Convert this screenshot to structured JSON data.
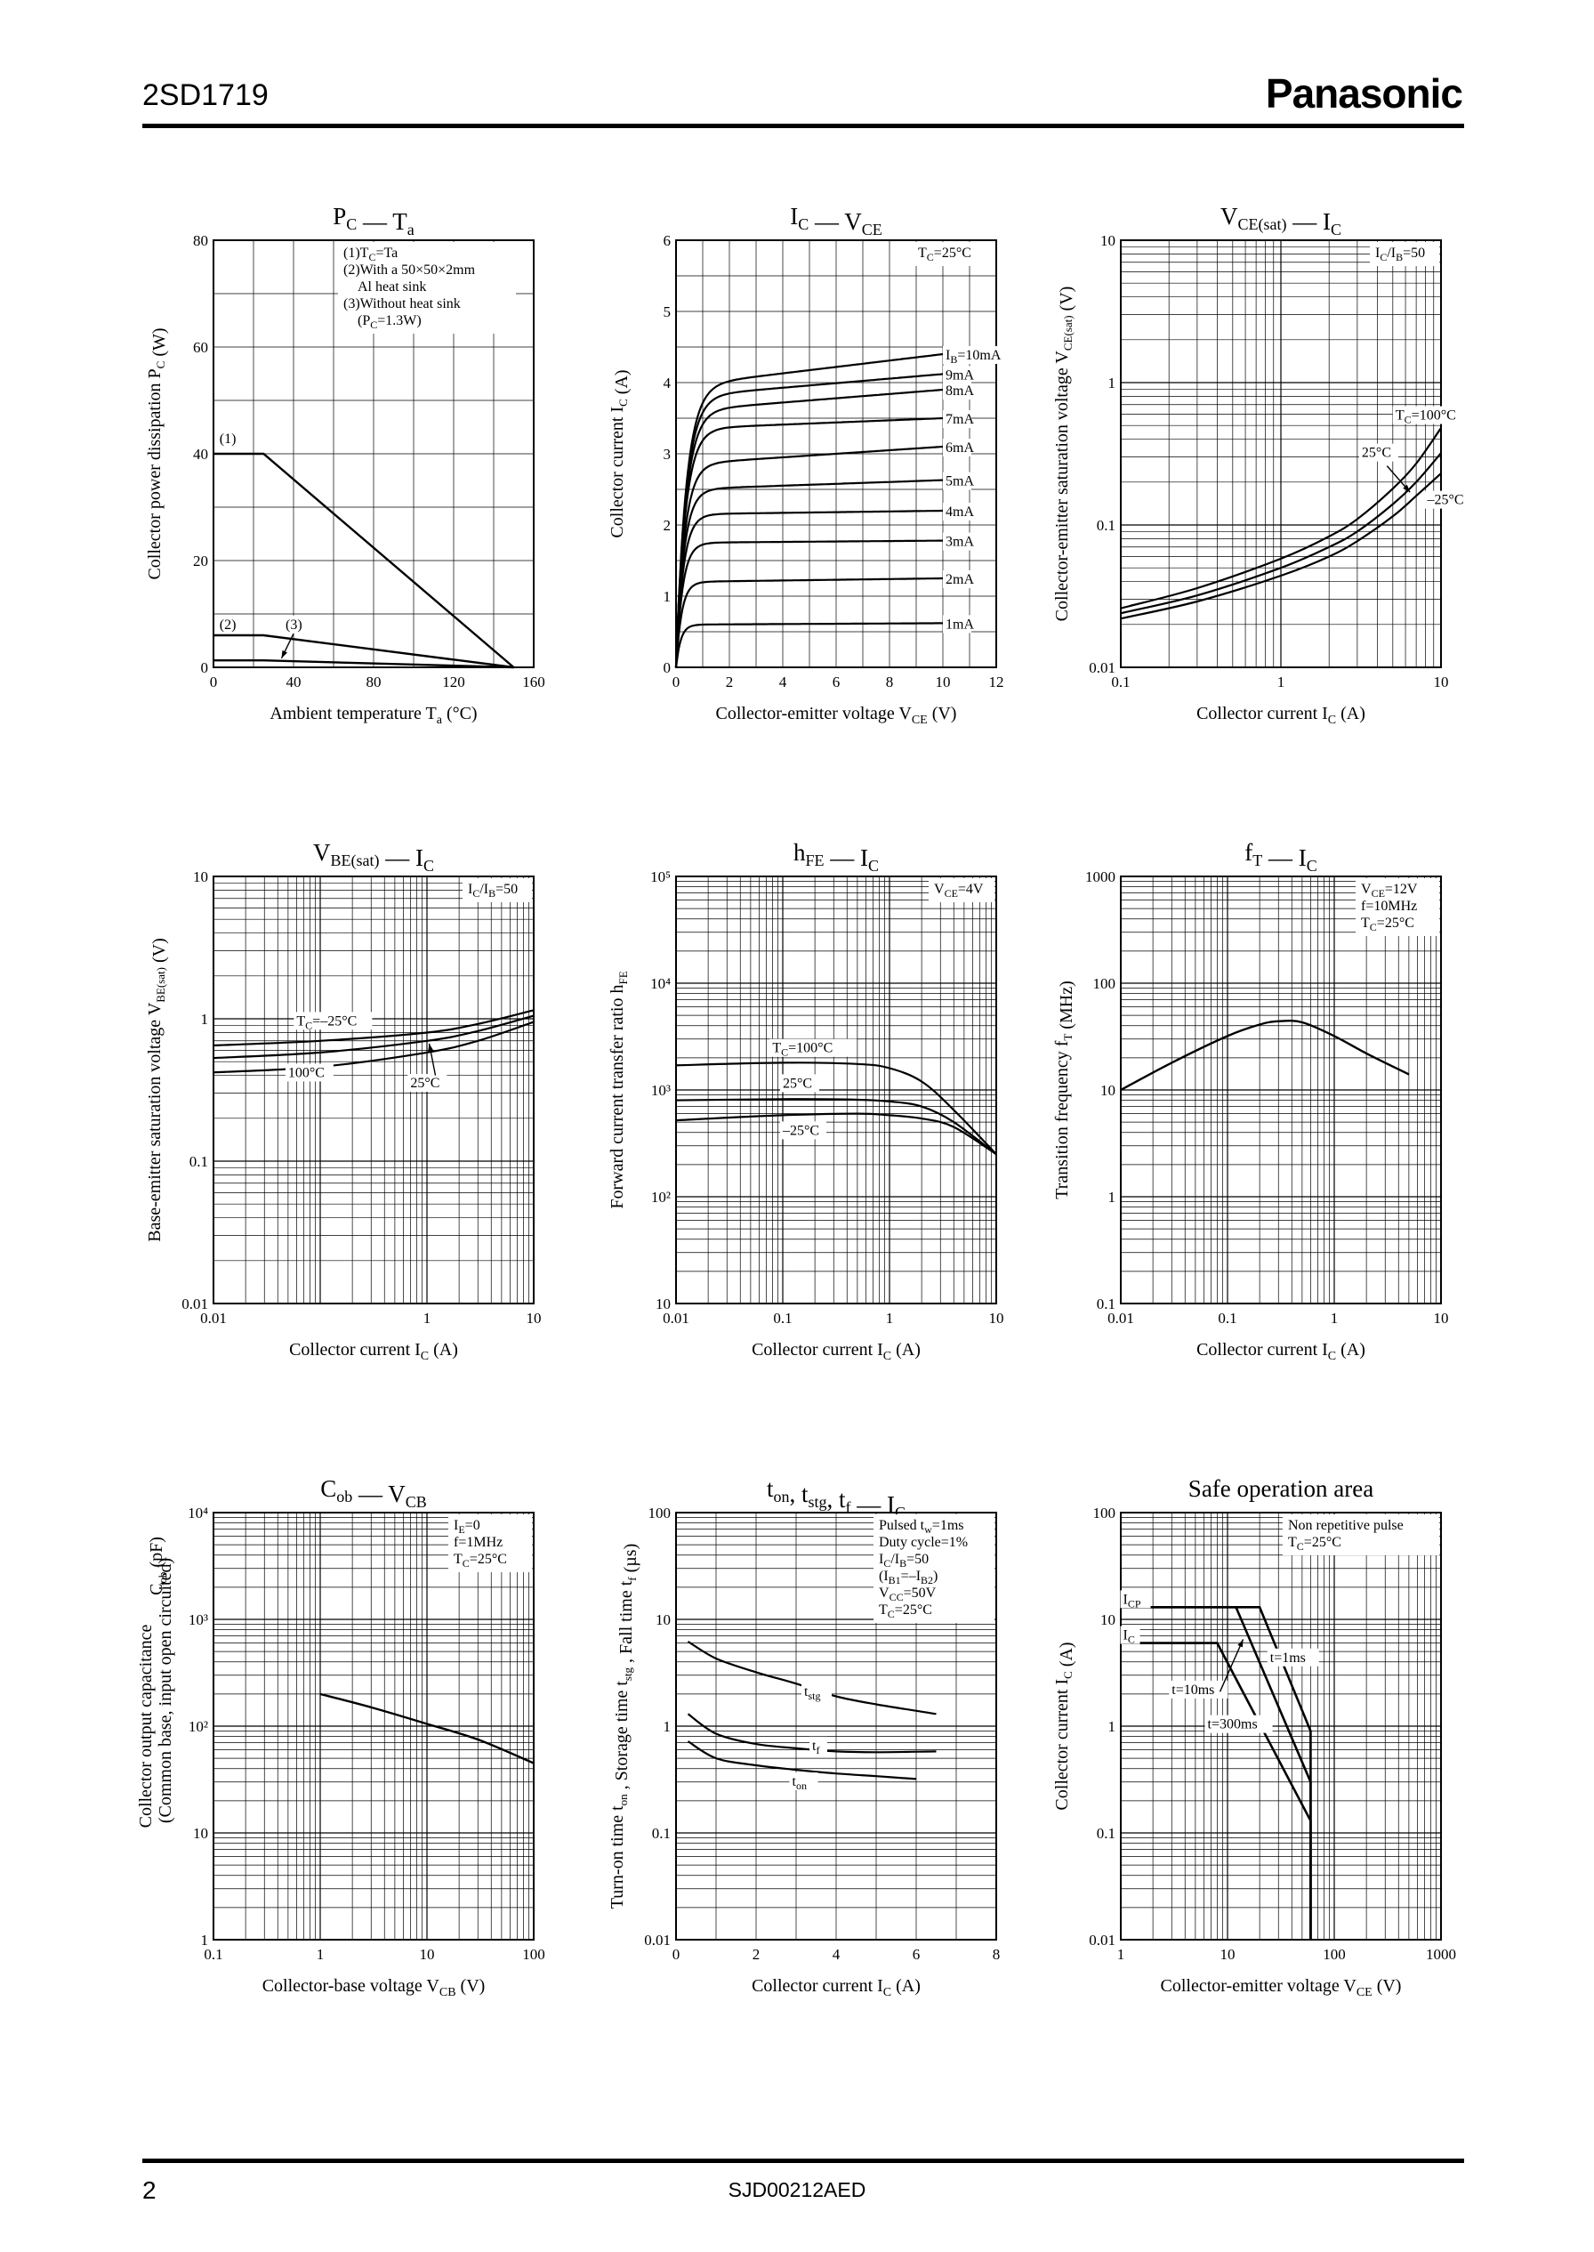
{
  "header": {
    "part_number": "2SD1719",
    "brand": "Panasonic"
  },
  "footer": {
    "page_number": "2",
    "doc_code": "SJD00212AED"
  },
  "chart_data": [
    {
      "id": "pc-ta",
      "type": "line",
      "title_main": "P",
      "title_main_sub": "C",
      "title_sep": " — ",
      "title_var": "T",
      "title_var_sub": "a",
      "ylabel": "Collector power dissipation  P",
      "ylabel_sub": "C",
      "ylabel_unit": "  (W)",
      "xlabel": "Ambient temperature  T",
      "xlabel_sub": "a",
      "xlabel_unit": "  (°C)",
      "xscale": "linear",
      "yscale": "linear",
      "xlim": [
        0,
        160
      ],
      "ylim": [
        0,
        80
      ],
      "xticks": [
        "0",
        "40",
        "80",
        "120",
        "160"
      ],
      "yticks": [
        "0",
        "20",
        "40",
        "60",
        "80"
      ],
      "legend": [
        "(1)T C=Ta",
        "(2)With a 50×50×2mm",
        "Al heat sink",
        "(3)Without heat sink",
        "(P C=1.3W)"
      ],
      "series": [
        {
          "name": "(1)",
          "x": [
            0,
            25,
            150
          ],
          "y": [
            40,
            40,
            0
          ]
        },
        {
          "name": "(2)",
          "x": [
            0,
            25,
            150
          ],
          "y": [
            6,
            6,
            0
          ]
        },
        {
          "name": "(3)",
          "x": [
            0,
            25,
            150
          ],
          "y": [
            1.3,
            1.3,
            0
          ]
        }
      ],
      "annotations": [
        "(1)",
        "(2)",
        "(3)"
      ]
    },
    {
      "id": "ic-vce",
      "type": "line",
      "title_main": "I",
      "title_main_sub": "C",
      "title_sep": " — ",
      "title_var": "V",
      "title_var_sub": "CE",
      "ylabel": "Collector current  I",
      "ylabel_sub": "C",
      "ylabel_unit": "  (A)",
      "xlabel": "Collector-emitter voltage  V",
      "xlabel_sub": "CE",
      "xlabel_unit": "  (V)",
      "xscale": "linear",
      "yscale": "linear",
      "xlim": [
        0,
        12
      ],
      "ylim": [
        0,
        6
      ],
      "xticks": [
        "0",
        "2",
        "4",
        "6",
        "8",
        "10",
        "12"
      ],
      "yticks": [
        "0",
        "1",
        "2",
        "3",
        "4",
        "5",
        "6"
      ],
      "legend": [
        "T C=25°C"
      ],
      "series": [
        {
          "name": "I B=10mA",
          "sat": 3.95,
          "end": 4.4
        },
        {
          "name": "9mA",
          "sat": 3.8,
          "end": 4.12
        },
        {
          "name": "8mA",
          "sat": 3.6,
          "end": 3.9
        },
        {
          "name": "7mA",
          "sat": 3.35,
          "end": 3.5
        },
        {
          "name": "6mA",
          "sat": 2.85,
          "end": 3.1
        },
        {
          "name": "5mA",
          "sat": 2.5,
          "end": 2.63
        },
        {
          "name": "4mA",
          "sat": 2.15,
          "end": 2.2
        },
        {
          "name": "3mA",
          "sat": 1.75,
          "end": 1.78
        },
        {
          "name": "2mA",
          "sat": 1.2,
          "end": 1.25
        },
        {
          "name": "1mA",
          "sat": 0.6,
          "end": 0.62
        }
      ]
    },
    {
      "id": "vcesat-ic",
      "type": "line",
      "title_main": "V",
      "title_main_sub": "CE(sat)",
      "title_sep": " — ",
      "title_var": "I",
      "title_var_sub": "C",
      "ylabel": "Collector-emitter saturation voltage  V",
      "ylabel_sub": "CE(sat)",
      "ylabel_unit": "  (V)",
      "xlabel": "Collector current  I",
      "xlabel_sub": "C",
      "xlabel_unit": "  (A)",
      "xscale": "log",
      "yscale": "log",
      "xlim": [
        0.1,
        10
      ],
      "ylim": [
        0.01,
        10
      ],
      "xticks": [
        "0.1",
        "1",
        "10"
      ],
      "yticks": [
        "0.01",
        "0.1",
        "1",
        "10"
      ],
      "legend": [
        "I C/I B=50"
      ],
      "series": [
        {
          "name": "T C=100°C",
          "x": [
            0.1,
            0.3,
            1,
            2,
            3,
            5,
            7,
            10
          ],
          "y": [
            0.026,
            0.036,
            0.058,
            0.083,
            0.11,
            0.18,
            0.27,
            0.48
          ]
        },
        {
          "name": "25°C",
          "x": [
            0.1,
            0.3,
            1,
            2,
            3,
            5,
            7,
            10
          ],
          "y": [
            0.024,
            0.032,
            0.05,
            0.07,
            0.09,
            0.14,
            0.2,
            0.32
          ]
        },
        {
          "name": "–25°C",
          "x": [
            0.1,
            0.3,
            1,
            2,
            3,
            5,
            7,
            10
          ],
          "y": [
            0.022,
            0.029,
            0.044,
            0.06,
            0.077,
            0.115,
            0.16,
            0.23
          ]
        }
      ]
    },
    {
      "id": "vbesat-ic",
      "type": "line",
      "title_main": "V",
      "title_main_sub": "BE(sat)",
      "title_sep": " — ",
      "title_var": "I",
      "title_var_sub": "C",
      "ylabel": "Base-emitter saturation voltage  V",
      "ylabel_sub": "BE(sat)",
      "ylabel_unit": "  (V)",
      "xlabel": "Collector current  I",
      "xlabel_sub": "C",
      "xlabel_unit": "  (A)",
      "xscale": "log",
      "yscale": "log",
      "xlim": [
        0.01,
        10
      ],
      "ylim": [
        0.01,
        10
      ],
      "xticks": [
        "0.01",
        "1",
        "10"
      ],
      "xtick_values": [
        0.01,
        1,
        10
      ],
      "yticks": [
        "0.01",
        "0.1",
        "1",
        "10"
      ],
      "legend": [
        "I C/I B=50"
      ],
      "series": [
        {
          "name": "T C=–25°C",
          "x": [
            0.01,
            0.1,
            1,
            3,
            10
          ],
          "y": [
            0.65,
            0.7,
            0.8,
            0.92,
            1.15
          ]
        },
        {
          "name": "25°C",
          "x": [
            0.01,
            0.1,
            1,
            3,
            10
          ],
          "y": [
            0.53,
            0.58,
            0.7,
            0.82,
            1.05
          ]
        },
        {
          "name": "100°C",
          "x": [
            0.01,
            0.1,
            1,
            3,
            10
          ],
          "y": [
            0.42,
            0.46,
            0.58,
            0.7,
            0.95
          ]
        }
      ]
    },
    {
      "id": "hfe-ic",
      "type": "line",
      "title_main": "h",
      "title_main_sub": "FE",
      "title_sep": " — ",
      "title_var": "I",
      "title_var_sub": "C",
      "ylabel": "Forward current transfer ratio  h",
      "ylabel_sub": "FE",
      "ylabel_unit": "",
      "xlabel": "Collector current  I",
      "xlabel_sub": "C",
      "xlabel_unit": "  (A)",
      "xscale": "log",
      "yscale": "log",
      "xlim": [
        0.01,
        10
      ],
      "ylim": [
        10,
        100000
      ],
      "xticks": [
        "0.01",
        "0.1",
        "1",
        "10"
      ],
      "yticks": [
        "10",
        "10²",
        "10³",
        "10⁴",
        "10⁵"
      ],
      "legend": [
        "V CE=4V"
      ],
      "series": [
        {
          "name": "T C=100°C",
          "x": [
            0.01,
            0.1,
            0.5,
            1,
            2,
            4,
            10
          ],
          "y": [
            1700,
            1800,
            1750,
            1600,
            1200,
            650,
            250
          ]
        },
        {
          "name": "25°C",
          "x": [
            0.01,
            0.1,
            0.5,
            1,
            2,
            4,
            10
          ],
          "y": [
            800,
            820,
            810,
            780,
            700,
            500,
            250
          ]
        },
        {
          "name": "–25°C",
          "x": [
            0.01,
            0.1,
            0.5,
            1,
            2,
            4,
            10
          ],
          "y": [
            520,
            580,
            600,
            580,
            540,
            450,
            250
          ]
        }
      ]
    },
    {
      "id": "ft-ic",
      "type": "line",
      "title_main": "f",
      "title_main_sub": "T",
      "title_sep": " — ",
      "title_var": "I",
      "title_var_sub": "C",
      "ylabel": "Transition frequency  f",
      "ylabel_sub": "T",
      "ylabel_unit": "  (MHz)",
      "xlabel": "Collector current  I",
      "xlabel_sub": "C",
      "xlabel_unit": "  (A)",
      "xscale": "log",
      "yscale": "log",
      "xlim": [
        0.01,
        10
      ],
      "ylim": [
        0.1,
        1000
      ],
      "xticks": [
        "0.01",
        "0.1",
        "1",
        "10"
      ],
      "yticks": [
        "0.1",
        "1",
        "10",
        "100",
        "1000"
      ],
      "legend": [
        "V CE=12V",
        "f=10MHz",
        "T C=25°C"
      ],
      "series": [
        {
          "name": "fT",
          "x": [
            0.01,
            0.03,
            0.1,
            0.2,
            0.3,
            0.5,
            1,
            2,
            5
          ],
          "y": [
            10,
            18,
            32,
            41,
            44,
            43,
            32,
            22,
            14
          ]
        }
      ]
    },
    {
      "id": "cob-vcb",
      "type": "line",
      "title_main": "C",
      "title_main_sub": "ob",
      "title_sep": " — ",
      "title_var": "V",
      "title_var_sub": "CB",
      "ylabel": "Collector output capacitance",
      "ylabel2": "(Common base, input open circuited)",
      "ylabel_sym": "C",
      "ylabel_sub": "ob",
      "ylabel_unit": "  (pF)",
      "xlabel": "Collector-base voltage  V",
      "xlabel_sub": "CB",
      "xlabel_unit": "  (V)",
      "xscale": "log",
      "yscale": "log",
      "xlim": [
        0.1,
        100
      ],
      "ylim": [
        1,
        10000
      ],
      "xticks": [
        "0.1",
        "1",
        "10",
        "100"
      ],
      "yticks": [
        "1",
        "10",
        "10²",
        "10³",
        "10⁴"
      ],
      "legend": [
        "I E=0",
        "f=1MHz",
        "T C=25°C"
      ],
      "series": [
        {
          "name": "Cob",
          "x": [
            1,
            3,
            10,
            30,
            100
          ],
          "y": [
            200,
            150,
            105,
            75,
            45
          ]
        }
      ]
    },
    {
      "id": "switching-ic",
      "type": "line",
      "title_main": "t",
      "title_main_sub": "on",
      "title_sep": ", ",
      "title_var": "t",
      "title_var_sub": "stg",
      "title_extra": ", t",
      "title_extra_sub": "f",
      "title_tail": " — I",
      "title_tail_sub": "C",
      "ylabel": "Turn-on time t",
      "ylabel_sub": "on",
      "ylabel_mid": " , Storage time t",
      "ylabel_sub2": "stg",
      "ylabel_mid2": " , Fall time t",
      "ylabel_sub3": "f",
      "ylabel_unit": "  (µs)",
      "xlabel": "Collector current  I",
      "xlabel_sub": "C",
      "xlabel_unit": "  (A)",
      "xscale": "linear",
      "yscale": "log",
      "xlim": [
        0,
        8
      ],
      "ylim": [
        0.01,
        100
      ],
      "xticks": [
        "0",
        "2",
        "4",
        "6",
        "8"
      ],
      "yticks": [
        "0.01",
        "0.1",
        "1",
        "10",
        "100"
      ],
      "legend": [
        "Pulsed t w=1ms",
        "Duty cycle=1%",
        "I C/I B=50",
        "(I B1=–I B2)",
        "V CC=50V",
        "T C=25°C"
      ],
      "series": [
        {
          "name": "t stg",
          "x": [
            0.3,
            1,
            2,
            3,
            4,
            5,
            6.5
          ],
          "y": [
            6.2,
            4.3,
            3.2,
            2.5,
            1.9,
            1.6,
            1.3
          ]
        },
        {
          "name": "t f",
          "x": [
            0.3,
            1,
            2,
            3,
            4,
            5,
            6.5
          ],
          "y": [
            1.3,
            0.85,
            0.68,
            0.62,
            0.58,
            0.57,
            0.58
          ]
        },
        {
          "name": "t on",
          "x": [
            0.3,
            1,
            2,
            3,
            4,
            5,
            6
          ],
          "y": [
            0.72,
            0.5,
            0.43,
            0.39,
            0.36,
            0.34,
            0.32
          ]
        }
      ]
    },
    {
      "id": "soa",
      "type": "line",
      "title_text": "Safe operation area",
      "ylabel": "Collector current  I",
      "ylabel_sub": "C",
      "ylabel_unit": "  (A)",
      "xlabel": "Collector-emitter voltage  V",
      "xlabel_sub": "CE",
      "xlabel_unit": "  (V)",
      "xscale": "log",
      "yscale": "log",
      "xlim": [
        1,
        1000
      ],
      "ylim": [
        0.01,
        100
      ],
      "xticks": [
        "1",
        "10",
        "100",
        "1000"
      ],
      "yticks": [
        "0.01",
        "0.1",
        "1",
        "10",
        "100"
      ],
      "legend": [
        "Non repetitive pulse",
        "T C=25°C"
      ],
      "series": [
        {
          "name": "t=1ms",
          "x": [
            1,
            20,
            60,
            60
          ],
          "y": [
            13,
            13,
            0.9,
            0.01
          ]
        },
        {
          "name": "t=10ms",
          "x": [
            1,
            12,
            60,
            60
          ],
          "y": [
            13,
            13,
            0.3,
            0.01
          ]
        },
        {
          "name": "t=300ms",
          "x": [
            1,
            8,
            60,
            60
          ],
          "y": [
            6,
            6,
            0.13,
            0.01
          ]
        }
      ],
      "annotations": [
        "I CP",
        "I C",
        "t=1ms",
        "t=10ms",
        "t=300ms"
      ]
    }
  ]
}
